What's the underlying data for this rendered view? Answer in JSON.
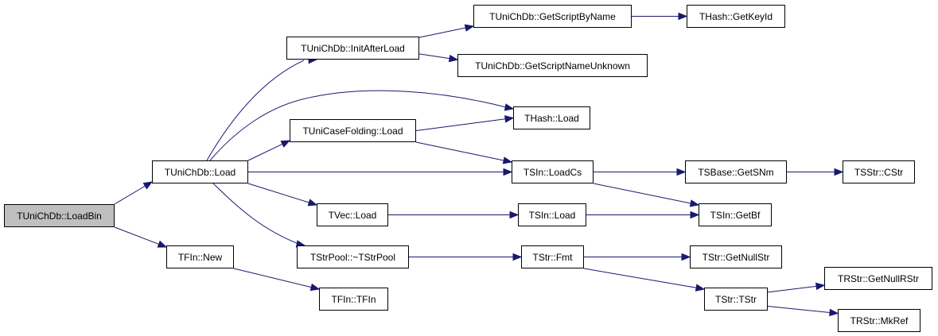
{
  "colors": {
    "edge": "#191970",
    "root_fill": "#bfbfbf",
    "node_fill": "#ffffff"
  },
  "nodes": [
    {
      "id": "loadbin",
      "label": "TUniChDb::LoadBin",
      "root": true
    },
    {
      "id": "load",
      "label": "TUniChDb::Load"
    },
    {
      "id": "fin_new",
      "label": "TFIn::New"
    },
    {
      "id": "initafterload",
      "label": "TUniChDb::InitAfterLoad"
    },
    {
      "id": "casefolding",
      "label": "TUniCaseFolding::Load"
    },
    {
      "id": "tvec_load",
      "label": "TVec::Load"
    },
    {
      "id": "strpool_dtor",
      "label": "TStrPool::~TStrPool"
    },
    {
      "id": "fin_ctor",
      "label": "TFIn::TFIn"
    },
    {
      "id": "getscriptbyname",
      "label": "TUniChDb::GetScriptByName"
    },
    {
      "id": "getscriptnameunknown",
      "label": "TUniChDb::GetScriptNameUnknown"
    },
    {
      "id": "thash_load",
      "label": "THash::Load"
    },
    {
      "id": "sin_loadcs",
      "label": "TSIn::LoadCs"
    },
    {
      "id": "sin_load",
      "label": "TSIn::Load"
    },
    {
      "id": "str_fmt",
      "label": "TStr::Fmt"
    },
    {
      "id": "thash_getkeyid",
      "label": "THash::GetKeyId"
    },
    {
      "id": "sbase_getsnm",
      "label": "TSBase::GetSNm"
    },
    {
      "id": "sin_getbf",
      "label": "TSIn::GetBf"
    },
    {
      "id": "str_getnullstr",
      "label": "TStr::GetNullStr"
    },
    {
      "id": "str_ctor",
      "label": "TStr::TStr"
    },
    {
      "id": "sstr_cstr",
      "label": "TSStr::CStr"
    },
    {
      "id": "rstr_getnullrstr",
      "label": "TRStr::GetNullRStr"
    },
    {
      "id": "rstr_mkref",
      "label": "TRStr::MkRef"
    }
  ],
  "edges": [
    [
      "loadbin",
      "load"
    ],
    [
      "loadbin",
      "fin_new"
    ],
    [
      "load",
      "initafterload"
    ],
    [
      "load",
      "thash_load"
    ],
    [
      "load",
      "casefolding"
    ],
    [
      "load",
      "sin_loadcs"
    ],
    [
      "load",
      "tvec_load"
    ],
    [
      "load",
      "strpool_dtor"
    ],
    [
      "fin_new",
      "fin_ctor"
    ],
    [
      "initafterload",
      "getscriptbyname"
    ],
    [
      "initafterload",
      "getscriptnameunknown"
    ],
    [
      "getscriptbyname",
      "thash_getkeyid"
    ],
    [
      "casefolding",
      "thash_load"
    ],
    [
      "casefolding",
      "sin_loadcs"
    ],
    [
      "sin_loadcs",
      "sbase_getsnm"
    ],
    [
      "sin_loadcs",
      "sin_getbf"
    ],
    [
      "sbase_getsnm",
      "sstr_cstr"
    ],
    [
      "tvec_load",
      "sin_load"
    ],
    [
      "sin_load",
      "sin_getbf"
    ],
    [
      "strpool_dtor",
      "str_fmt"
    ],
    [
      "str_fmt",
      "str_getnullstr"
    ],
    [
      "str_fmt",
      "str_ctor"
    ],
    [
      "str_ctor",
      "rstr_getnullrstr"
    ],
    [
      "str_ctor",
      "rstr_mkref"
    ]
  ]
}
